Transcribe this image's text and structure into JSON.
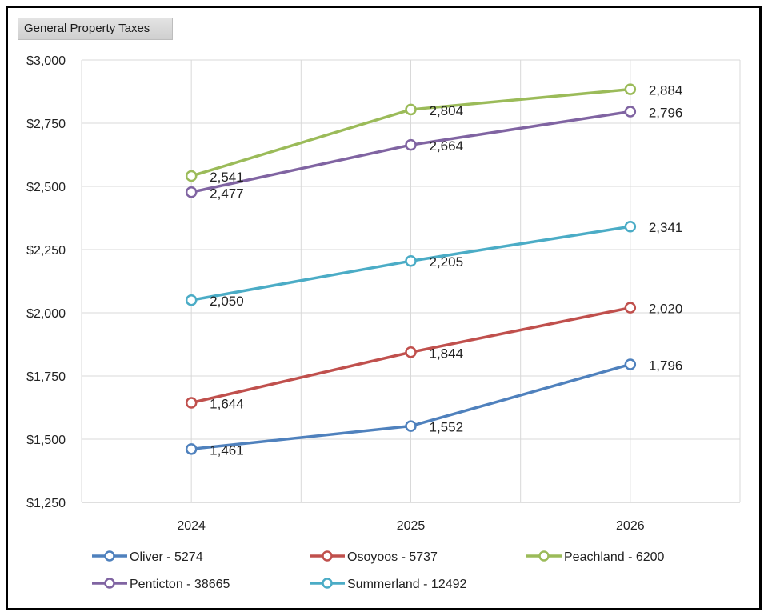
{
  "chart_data": {
    "type": "line",
    "title": "General Property Taxes",
    "categories": [
      "2024",
      "2025",
      "2026"
    ],
    "ylim": [
      1250,
      3000
    ],
    "yticks": [
      1250,
      1500,
      1750,
      2000,
      2250,
      2500,
      2750,
      3000
    ],
    "ytick_labels": [
      "$1,250",
      "$1,500",
      "$1,750",
      "$2,000",
      "$2,250",
      "$2,500",
      "$2,750",
      "$3,000"
    ],
    "grid": true,
    "legend_position": "bottom",
    "series": [
      {
        "name": "Oliver - 5274",
        "color": "#4f81bd",
        "values": [
          1461,
          1552,
          1796
        ],
        "labels": [
          "1,461",
          "1,552",
          "1,796"
        ]
      },
      {
        "name": "Osoyoos - 5737",
        "color": "#c0504d",
        "values": [
          1644,
          1844,
          2020
        ],
        "labels": [
          "1,644",
          "1,844",
          "2,020"
        ]
      },
      {
        "name": "Peachland - 6200",
        "color": "#9bbb59",
        "values": [
          2541,
          2804,
          2884
        ],
        "labels": [
          "2,541",
          "2,804",
          "2,884"
        ]
      },
      {
        "name": "Penticton - 38665",
        "color": "#8064a2",
        "values": [
          2477,
          2664,
          2796
        ],
        "labels": [
          "2,477",
          "2,664",
          "2,796"
        ]
      },
      {
        "name": "Summerland - 12492",
        "color": "#4bacc6",
        "values": [
          2050,
          2205,
          2341
        ],
        "labels": [
          "2,050",
          "2,205",
          "2,341"
        ]
      }
    ]
  }
}
